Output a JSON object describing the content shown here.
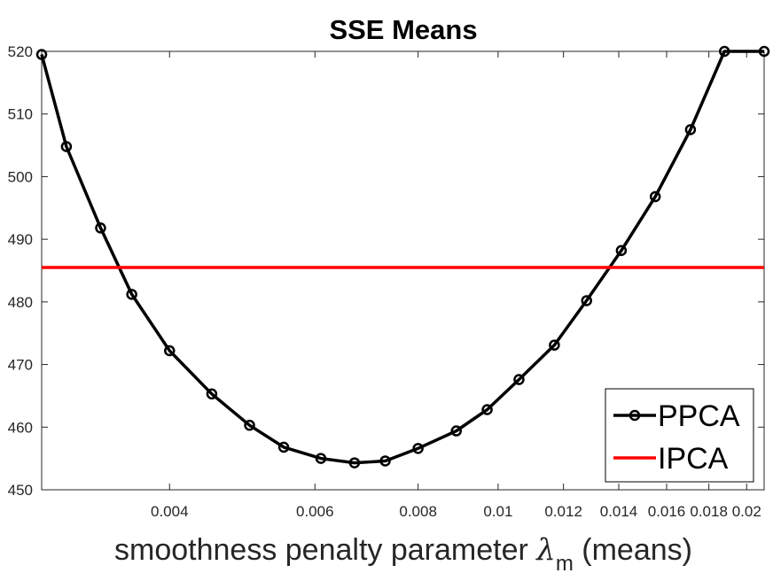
{
  "chart_data": {
    "type": "line",
    "title": "SSE Means",
    "xlabel": "smoothness penalty parameter",
    "xlabel_symbol": "λ",
    "xlabel_subscript": "m",
    "xlabel_suffix": "(means)",
    "ylabel": "",
    "xscale": "log",
    "xlim": [
      0.0028,
      0.021
    ],
    "ylim": [
      450,
      520
    ],
    "xticks": [
      0.004,
      0.006,
      0.008,
      0.01,
      0.012,
      0.014,
      0.016,
      0.018,
      0.02
    ],
    "xtick_labels": [
      "0.004",
      "0.006",
      "0.008",
      "0.01",
      "0.012",
      "0.014",
      "0.016",
      "0.018",
      "0.02"
    ],
    "yticks": [
      450,
      460,
      470,
      480,
      490,
      500,
      510,
      520
    ],
    "ytick_labels": [
      "450",
      "460",
      "470",
      "480",
      "490",
      "500",
      "510",
      "520"
    ],
    "legend_position": "bottom-right",
    "series": [
      {
        "name": "PPCA",
        "color": "#000000",
        "marker": "circle",
        "x": [
          0.0028,
          0.003,
          0.0033,
          0.0036,
          0.004,
          0.0045,
          0.005,
          0.0055,
          0.0061,
          0.0067,
          0.0073,
          0.008,
          0.0089,
          0.0097,
          0.0106,
          0.0117,
          0.0128,
          0.0141,
          0.0155,
          0.0171,
          0.0188,
          0.021
        ],
        "y": [
          519.5,
          504.8,
          491.8,
          481.2,
          472.2,
          465.3,
          460.3,
          456.8,
          455.0,
          454.3,
          454.6,
          456.6,
          459.4,
          462.8,
          467.6,
          473.1,
          480.2,
          488.2,
          496.8,
          507.5,
          520.0,
          520.0
        ]
      },
      {
        "name": "IPCA",
        "color": "#ff0000",
        "marker": "none",
        "x": [
          0.0028,
          0.021
        ],
        "y": [
          485.5,
          485.5
        ]
      }
    ]
  }
}
